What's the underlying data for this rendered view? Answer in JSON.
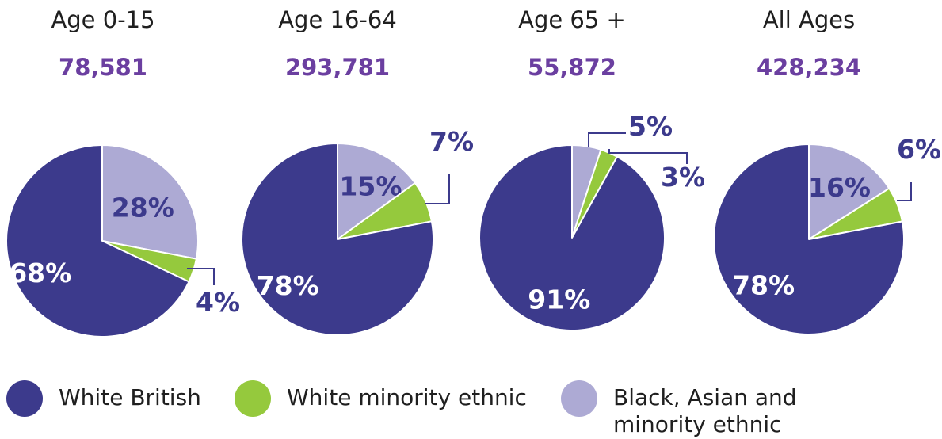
{
  "colors": {
    "white_british": "#3c3a8c",
    "white_minority": "#95c93d",
    "bame": "#adaad4",
    "label_light": "#ffffff",
    "label_dark": "#3c3a8c"
  },
  "chart_data": [
    {
      "type": "pie",
      "title": "Age 0-15",
      "total": "78,581",
      "slices": [
        {
          "name": "Black, Asian and minority ethnic",
          "value": 28,
          "label": "28%"
        },
        {
          "name": "White minority ethnic",
          "value": 4,
          "label": "4%"
        },
        {
          "name": "White British",
          "value": 68,
          "label": "68%"
        }
      ]
    },
    {
      "type": "pie",
      "title": "Age 16-64",
      "total": "293,781",
      "slices": [
        {
          "name": "Black, Asian and minority ethnic",
          "value": 15,
          "label": "15%"
        },
        {
          "name": "White minority ethnic",
          "value": 7,
          "label": "7%"
        },
        {
          "name": "White British",
          "value": 78,
          "label": "78%"
        }
      ]
    },
    {
      "type": "pie",
      "title": "Age 65 +",
      "total": "55,872",
      "slices": [
        {
          "name": "Black, Asian and minority ethnic",
          "value": 5,
          "label": "5%"
        },
        {
          "name": "White minority ethnic",
          "value": 3,
          "label": "3%"
        },
        {
          "name": "White British",
          "value": 91,
          "label": "91%"
        }
      ]
    },
    {
      "type": "pie",
      "title": "All Ages",
      "total": "428,234",
      "slices": [
        {
          "name": "Black, Asian and minority ethnic",
          "value": 16,
          "label": "16%"
        },
        {
          "name": "White minority ethnic",
          "value": 6,
          "label": "6%"
        },
        {
          "name": "White British",
          "value": 78,
          "label": "78%"
        }
      ]
    }
  ],
  "legend": [
    {
      "label": "White British",
      "color": "#3c3a8c"
    },
    {
      "label": "White minority ethnic",
      "color": "#95c93d"
    },
    {
      "label": "Black, Asian and\nminority ethnic",
      "color": "#adaad4"
    }
  ]
}
